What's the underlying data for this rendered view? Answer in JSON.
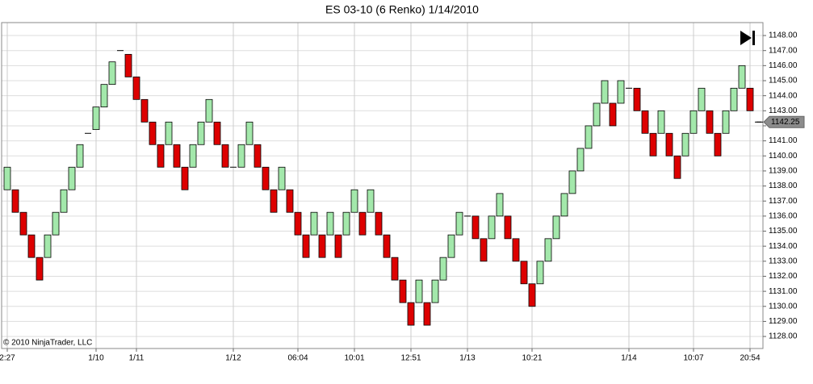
{
  "chart_data": {
    "type": "renko",
    "title": "ES 03-10 (6 Renko)  1/14/2010",
    "copyright": "© 2010 NinjaTrader, LLC",
    "up_color": "#a3e8ab",
    "down_color": "#dd0000",
    "grid": true,
    "ylim": [
      1127.2,
      1148.86
    ],
    "yticks": [
      {
        "value": 1128,
        "label": "1128.00"
      },
      {
        "value": 1129,
        "label": "1129.00"
      },
      {
        "value": 1130,
        "label": "1130.00"
      },
      {
        "value": 1131,
        "label": "1131.00"
      },
      {
        "value": 1132,
        "label": "1132.00"
      },
      {
        "value": 1133,
        "label": "1133.00"
      },
      {
        "value": 1134,
        "label": "1134.00"
      },
      {
        "value": 1135,
        "label": "1135.00"
      },
      {
        "value": 1136,
        "label": "1136.00"
      },
      {
        "value": 1137,
        "label": "1137.00"
      },
      {
        "value": 1138,
        "label": "1138.00"
      },
      {
        "value": 1139,
        "label": "1139.00"
      },
      {
        "value": 1140,
        "label": "1140.00"
      },
      {
        "value": 1141,
        "label": "1141.00"
      },
      {
        "value": 1142,
        "label": "1142.00"
      },
      {
        "value": 1143,
        "label": "1143.00"
      },
      {
        "value": 1144,
        "label": "1144.00"
      },
      {
        "value": 1145,
        "label": "1145.00"
      },
      {
        "value": 1146,
        "label": "1146.00"
      },
      {
        "value": 1147,
        "label": "1147.00"
      },
      {
        "value": 1148,
        "label": "1148.00"
      }
    ],
    "last_price": {
      "value": 1142.25,
      "label": "1142.25"
    },
    "categories": [
      "2:27",
      null,
      null,
      null,
      null,
      null,
      null,
      null,
      null,
      null,
      null,
      "1/10",
      null,
      null,
      null,
      null,
      "1/11",
      null,
      null,
      null,
      null,
      null,
      null,
      null,
      null,
      null,
      null,
      null,
      "1/12",
      null,
      null,
      null,
      null,
      null,
      null,
      null,
      "06:04",
      null,
      null,
      null,
      null,
      null,
      null,
      "10:01",
      null,
      null,
      null,
      null,
      null,
      null,
      "12:51",
      null,
      null,
      null,
      null,
      null,
      null,
      "1/13",
      null,
      null,
      null,
      null,
      null,
      null,
      null,
      "10:21",
      null,
      null,
      null,
      null,
      null,
      null,
      null,
      null,
      null,
      null,
      null,
      "1/14",
      null,
      null,
      null,
      null,
      null,
      null,
      null,
      "10:07",
      null,
      null,
      null,
      null,
      null,
      null,
      "20:54",
      null
    ],
    "open": [
      1137.75,
      1137.75,
      1136.25,
      1134.75,
      1133.25,
      1133.25,
      1134.75,
      1136.25,
      1137.75,
      1139.25,
      1141.5,
      1141.75,
      1143.25,
      1144.75,
      1147.0,
      1146.75,
      1145.25,
      1143.75,
      1142.25,
      1140.75,
      1140.75,
      1140.75,
      1139.25,
      1139.25,
      1140.75,
      1142.25,
      1142.25,
      1140.75,
      1139.25,
      1139.25,
      1140.75,
      1140.75,
      1139.25,
      1137.75,
      1137.75,
      1137.75,
      1136.25,
      1134.75,
      1134.75,
      1134.75,
      1134.75,
      1134.75,
      1134.75,
      1136.25,
      1136.25,
      1136.25,
      1136.25,
      1134.75,
      1133.25,
      1131.75,
      1130.25,
      1130.25,
      1130.25,
      1130.25,
      1131.75,
      1133.25,
      1134.75,
      1136.0,
      1136.0,
      1134.5,
      1134.5,
      1136.0,
      1136.0,
      1134.5,
      1133.0,
      1131.5,
      1131.5,
      1133.0,
      1134.5,
      1136.0,
      1137.5,
      1139.0,
      1140.5,
      1142.0,
      1143.5,
      1143.5,
      1143.5,
      1144.5,
      1144.5,
      1143.0,
      1141.5,
      1141.5,
      1141.5,
      1140.0,
      1140.0,
      1141.5,
      1143.0,
      1143.0,
      1141.5,
      1141.5,
      1143.0,
      1144.5,
      1144.5,
      1142.25
    ],
    "close": [
      1139.25,
      1136.25,
      1134.75,
      1133.25,
      1131.75,
      1134.75,
      1136.25,
      1137.75,
      1139.25,
      1140.75,
      1141.5,
      1143.25,
      1144.75,
      1146.25,
      1147.0,
      1145.25,
      1143.75,
      1142.25,
      1140.75,
      1139.25,
      1142.25,
      1139.25,
      1137.75,
      1140.75,
      1142.25,
      1143.75,
      1140.75,
      1139.25,
      1139.25,
      1140.75,
      1142.25,
      1139.25,
      1137.75,
      1136.25,
      1139.25,
      1136.25,
      1134.75,
      1133.25,
      1136.25,
      1133.25,
      1136.25,
      1133.25,
      1136.25,
      1137.75,
      1134.75,
      1137.75,
      1134.75,
      1133.25,
      1131.75,
      1130.25,
      1128.75,
      1131.75,
      1128.75,
      1131.75,
      1133.25,
      1134.75,
      1136.25,
      1136.0,
      1134.5,
      1133.0,
      1136.0,
      1137.5,
      1134.5,
      1133.0,
      1131.5,
      1130.0,
      1133.0,
      1134.5,
      1136.0,
      1137.5,
      1139.0,
      1140.5,
      1142.0,
      1143.5,
      1145.0,
      1142.0,
      1145.0,
      1144.5,
      1143.0,
      1141.5,
      1140.0,
      1143.0,
      1140.0,
      1138.5,
      1141.5,
      1143.0,
      1144.5,
      1141.5,
      1140.0,
      1143.0,
      1144.5,
      1146.0,
      1143.0,
      1142.25
    ]
  }
}
